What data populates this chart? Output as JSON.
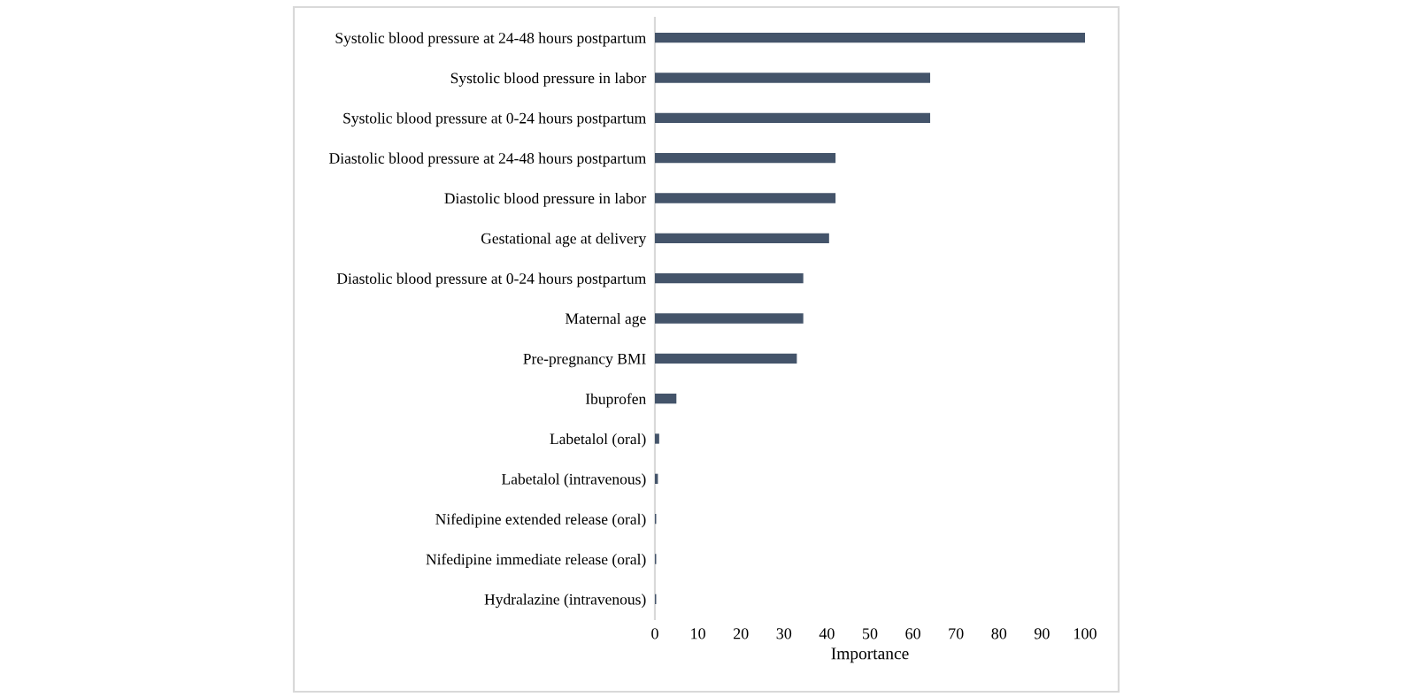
{
  "chart_data": {
    "type": "bar",
    "orientation": "horizontal",
    "xlabel": "Importance",
    "categories": [
      "Systolic blood pressure at 24-48 hours postpartum",
      "Systolic blood pressure in labor",
      "Systolic blood pressure at 0-24 hours postpartum",
      "Diastolic blood pressure at 24-48 hours postpartum",
      "Diastolic blood pressure in labor",
      "Gestational age at delivery",
      "Diastolic blood pressure at 0-24 hours postpartum",
      "Maternal age",
      "Pre-pregnancy BMI",
      "Ibuprofen",
      "Labetalol (oral)",
      "Labetalol (intravenous)",
      "Nifedipine extended release (oral)",
      "Nifedipine immediate release (oral)",
      "Hydralazine (intravenous)"
    ],
    "values": [
      100,
      64,
      64,
      42,
      42,
      40.5,
      34.5,
      34.5,
      33,
      5,
      1,
      0.7,
      0.3,
      0.3,
      0.3
    ],
    "color": "#44546a",
    "xlim": [
      0,
      100
    ],
    "xticks": [
      0,
      10,
      20,
      30,
      40,
      50,
      60,
      70,
      80,
      90,
      100
    ],
    "grid": false,
    "legend": false
  }
}
